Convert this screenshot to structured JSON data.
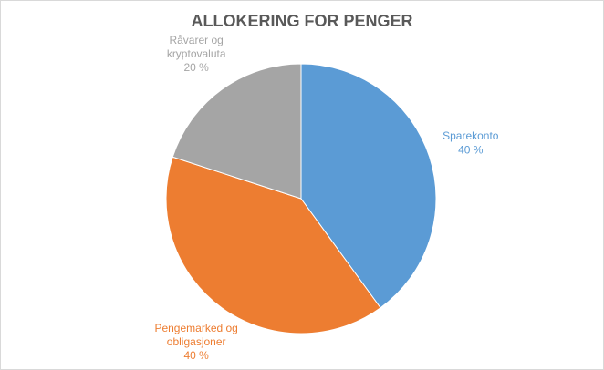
{
  "chart_data": {
    "type": "pie",
    "title": "ALLOKERING FOR PENGER",
    "categories": [
      "Sparekonto",
      "Pengemarked og obligasjoner",
      "Råvarer og kryptovaluta"
    ],
    "values": [
      40,
      40,
      20
    ],
    "value_labels": [
      "40 %",
      "40 %",
      "20 %"
    ],
    "colors": [
      "#5b9bd5",
      "#ed7d31",
      "#a5a5a5"
    ]
  }
}
